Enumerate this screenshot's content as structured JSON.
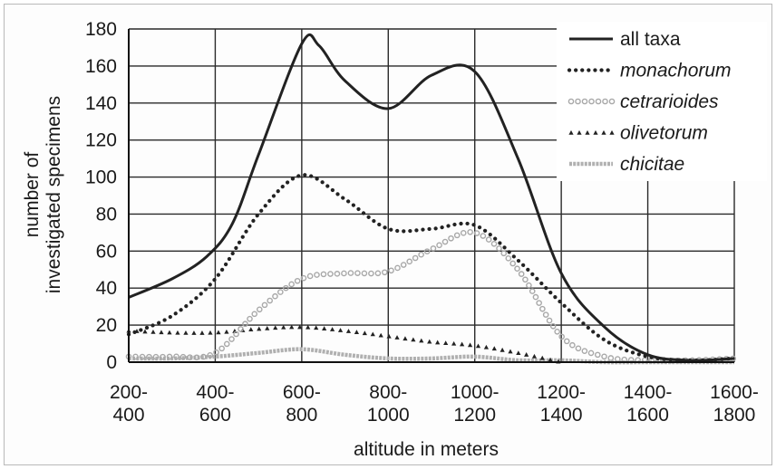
{
  "chart_data": {
    "type": "line",
    "title": "",
    "xlabel": "altitude in meters",
    "ylabel_lines": [
      "number of",
      "investigated specimens"
    ],
    "ylim": [
      0,
      180
    ],
    "yticks": [
      "0",
      "20",
      "40",
      "60",
      "80",
      "100",
      "120",
      "140",
      "160",
      "180"
    ],
    "x_categories": [
      [
        "200-",
        "400"
      ],
      [
        "400-",
        "600"
      ],
      [
        "600-",
        "800"
      ],
      [
        "800-",
        "1000"
      ],
      [
        "1000-",
        "1200"
      ],
      [
        "1200-",
        "1400"
      ],
      [
        "1400-",
        "1600"
      ],
      [
        "1600-",
        "1800"
      ]
    ],
    "grid": true,
    "legend_position": "top-right",
    "series": [
      {
        "name": "all taxa",
        "style": "solid",
        "color": "#222222",
        "points": [
          [
            0,
            35
          ],
          [
            0.5,
            45
          ],
          [
            0.9,
            57
          ],
          [
            1.2,
            75
          ],
          [
            1.5,
            112
          ],
          [
            2,
            172
          ],
          [
            2.2,
            171
          ],
          [
            2.5,
            152
          ],
          [
            3,
            137
          ],
          [
            3.5,
            155
          ],
          [
            4,
            157
          ],
          [
            4.5,
            110
          ],
          [
            5,
            48
          ],
          [
            5.5,
            19
          ],
          [
            6,
            4
          ],
          [
            6.5,
            1
          ],
          [
            7,
            2
          ]
        ]
      },
      {
        "name": "monachorum",
        "style": "dotted",
        "color": "#222222",
        "points": [
          [
            0,
            15
          ],
          [
            0.5,
            25
          ],
          [
            1,
            45
          ],
          [
            1.5,
            80
          ],
          [
            2,
            101
          ],
          [
            2.5,
            88
          ],
          [
            3,
            72
          ],
          [
            3.5,
            72
          ],
          [
            4,
            74
          ],
          [
            4.5,
            55
          ],
          [
            5,
            32
          ],
          [
            5.5,
            12
          ],
          [
            6,
            3
          ],
          [
            6.5,
            1
          ],
          [
            7,
            2
          ]
        ]
      },
      {
        "name": "cetrarioides",
        "style": "circles",
        "color": "#a8a8a8",
        "points": [
          [
            0,
            3
          ],
          [
            0.5,
            3
          ],
          [
            1,
            5
          ],
          [
            1.5,
            28
          ],
          [
            2,
            45
          ],
          [
            2.5,
            48
          ],
          [
            3,
            49
          ],
          [
            3.5,
            61
          ],
          [
            4,
            70
          ],
          [
            4.5,
            50
          ],
          [
            5,
            14
          ],
          [
            5.5,
            3
          ],
          [
            6,
            1
          ],
          [
            6.5,
            1
          ],
          [
            7,
            2
          ]
        ]
      },
      {
        "name": "olivetorum",
        "style": "triangles",
        "color": "#222222",
        "points": [
          [
            0,
            17
          ],
          [
            0.5,
            16
          ],
          [
            1,
            16
          ],
          [
            1.5,
            18
          ],
          [
            2,
            19
          ],
          [
            2.5,
            17
          ],
          [
            3,
            14
          ],
          [
            3.5,
            11
          ],
          [
            4,
            9
          ],
          [
            4.5,
            5
          ],
          [
            5,
            0
          ]
        ]
      },
      {
        "name": "chicitae",
        "style": "hatched",
        "color": "#b0b0b0",
        "points": [
          [
            0,
            2
          ],
          [
            0.5,
            2
          ],
          [
            1,
            3
          ],
          [
            1.5,
            5
          ],
          [
            2,
            7
          ],
          [
            2.5,
            4
          ],
          [
            3,
            2
          ],
          [
            3.5,
            2
          ],
          [
            4,
            3
          ],
          [
            4.5,
            1
          ],
          [
            5,
            1
          ],
          [
            5.5,
            0
          ],
          [
            6,
            0
          ],
          [
            6.5,
            0
          ],
          [
            7,
            0
          ]
        ]
      }
    ]
  }
}
